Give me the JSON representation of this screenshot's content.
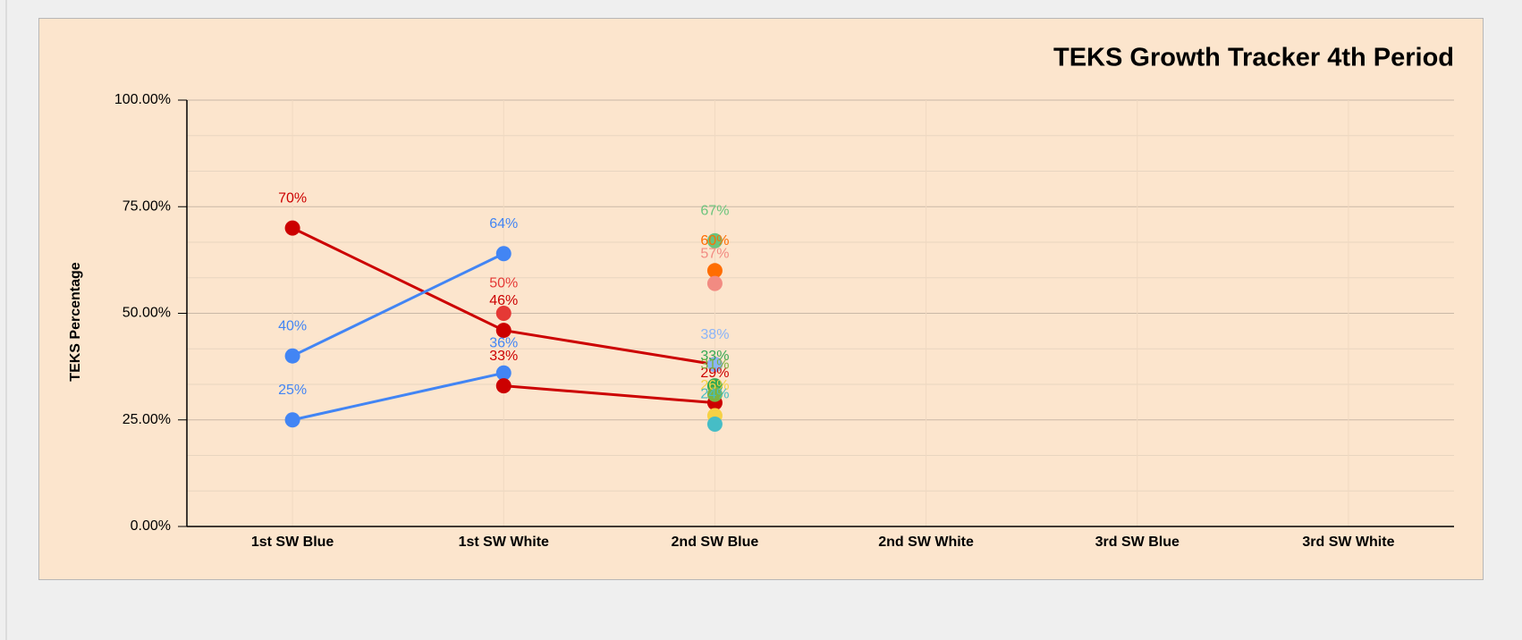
{
  "chart_data": {
    "type": "line",
    "title": "TEKS Growth Tracker 4th Period",
    "y_label": "TEKS Percentage",
    "categories": [
      "1st SW Blue",
      "1st SW White",
      "2nd SW Blue",
      "2nd SW White",
      "3rd SW Blue",
      "3rd SW White"
    ],
    "ylim": [
      0,
      100
    ],
    "yticks": [
      {
        "value": 0,
        "label": "0.00%"
      },
      {
        "value": 25,
        "label": "25.00%"
      },
      {
        "value": 50,
        "label": "50.00%"
      },
      {
        "value": 75,
        "label": "75.00%"
      },
      {
        "value": 100,
        "label": "100.00%"
      }
    ],
    "grid": true,
    "series": [
      {
        "color": "#cc0000",
        "values": [
          70,
          46,
          38,
          null,
          null,
          null
        ],
        "value_labels": [
          "70%",
          "46%",
          null,
          null,
          null,
          null
        ]
      },
      {
        "color": "#4285f4",
        "values": [
          40,
          64,
          null,
          null,
          null,
          null
        ],
        "value_labels": [
          "40%",
          "64%",
          null,
          null,
          null,
          null
        ]
      },
      {
        "color": "#4285f4",
        "values": [
          25,
          36,
          null,
          null,
          null,
          null
        ],
        "value_labels": [
          "25%",
          "36%",
          null,
          null,
          null,
          null
        ]
      },
      {
        "color": "#cc0000",
        "values": [
          null,
          33,
          29,
          null,
          null,
          null
        ],
        "value_labels": [
          null,
          "33%",
          "29%",
          null,
          null,
          null
        ]
      },
      {
        "color": "#e53935",
        "values": [
          null,
          50,
          null,
          null,
          null,
          null
        ],
        "value_labels": [
          null,
          "50%",
          null,
          null,
          null,
          null
        ]
      },
      {
        "color": "#6cc47c",
        "values": [
          null,
          null,
          67,
          null,
          null,
          null
        ],
        "value_labels": [
          null,
          null,
          "67%",
          null,
          null,
          null
        ]
      },
      {
        "color": "#ff6d01",
        "values": [
          null,
          null,
          60,
          null,
          null,
          null
        ],
        "value_labels": [
          null,
          null,
          "60%",
          null,
          null,
          null
        ]
      },
      {
        "color": "#f28b82",
        "values": [
          null,
          null,
          57,
          null,
          null,
          null
        ],
        "value_labels": [
          null,
          null,
          "57%",
          null,
          null,
          null
        ]
      },
      {
        "color": "#8ab4f8",
        "values": [
          null,
          null,
          38,
          null,
          null,
          null
        ],
        "value_labels": [
          null,
          null,
          "38%",
          null,
          null,
          null
        ]
      },
      {
        "color": "#34a853",
        "values": [
          null,
          null,
          33,
          null,
          null,
          null
        ],
        "value_labels": [
          null,
          null,
          "33%",
          null,
          null,
          null
        ]
      },
      {
        "color": "#7cb342",
        "values": [
          null,
          null,
          31,
          null,
          null,
          null
        ],
        "value_labels": [
          null,
          null,
          "31%",
          null,
          null,
          null
        ]
      },
      {
        "color": "#f6d145",
        "values": [
          null,
          null,
          26,
          null,
          null,
          null
        ],
        "value_labels": [
          null,
          null,
          "26%",
          null,
          null,
          null
        ]
      },
      {
        "color": "#46bdc6",
        "values": [
          null,
          null,
          24,
          null,
          null,
          null
        ],
        "value_labels": [
          null,
          null,
          "24%",
          null,
          null,
          null
        ]
      }
    ]
  }
}
